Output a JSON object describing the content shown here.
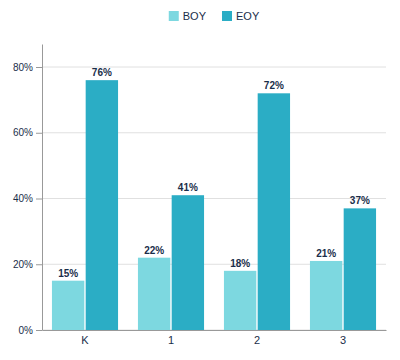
{
  "chart_data": {
    "type": "bar",
    "categories": [
      "K",
      "1",
      "2",
      "3"
    ],
    "series": [
      {
        "name": "BOY",
        "color": "#7dd8e0",
        "values": [
          15,
          22,
          18,
          21
        ],
        "value_labels": [
          "15%",
          "22%",
          "18%",
          "21%"
        ]
      },
      {
        "name": "EOY",
        "color": "#2badc5",
        "values": [
          76,
          41,
          72,
          37
        ],
        "value_labels": [
          "76%",
          "41%",
          "72%",
          "37%"
        ]
      }
    ],
    "ylim": [
      0,
      87
    ],
    "yticks": [
      {
        "value": 0,
        "label": "0%"
      },
      {
        "value": 20,
        "label": "20%"
      },
      {
        "value": 40,
        "label": "40%"
      },
      {
        "value": 60,
        "label": "60%"
      },
      {
        "value": 80,
        "label": "80%"
      }
    ],
    "grid": true,
    "legend": "top",
    "data_labels": true
  }
}
